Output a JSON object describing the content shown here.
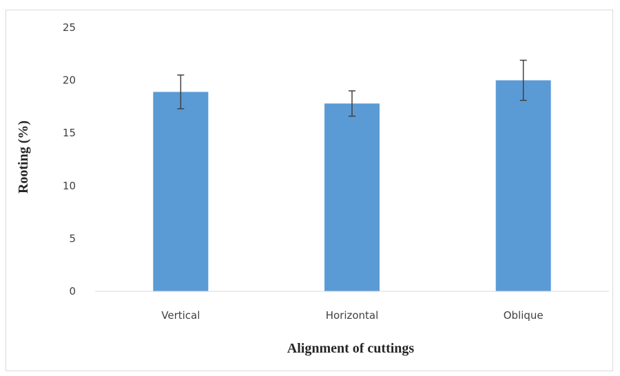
{
  "chart_data": {
    "type": "bar",
    "categories": [
      "Vertical",
      "Horizontal",
      "Oblique"
    ],
    "values": [
      18.9,
      17.8,
      20.0
    ],
    "error": [
      1.6,
      1.2,
      1.9
    ],
    "xlabel": "Alignment of cuttings",
    "ylabel": "Rooting (%)",
    "ylim": [
      0,
      25
    ],
    "yticks": [
      "0",
      "5",
      "10",
      "15",
      "20",
      "25"
    ],
    "grid": false,
    "legend": "none",
    "colors": {
      "bar": "#5b9bd5",
      "error_bar": "#404040",
      "axis": "#d9d9d9"
    }
  }
}
